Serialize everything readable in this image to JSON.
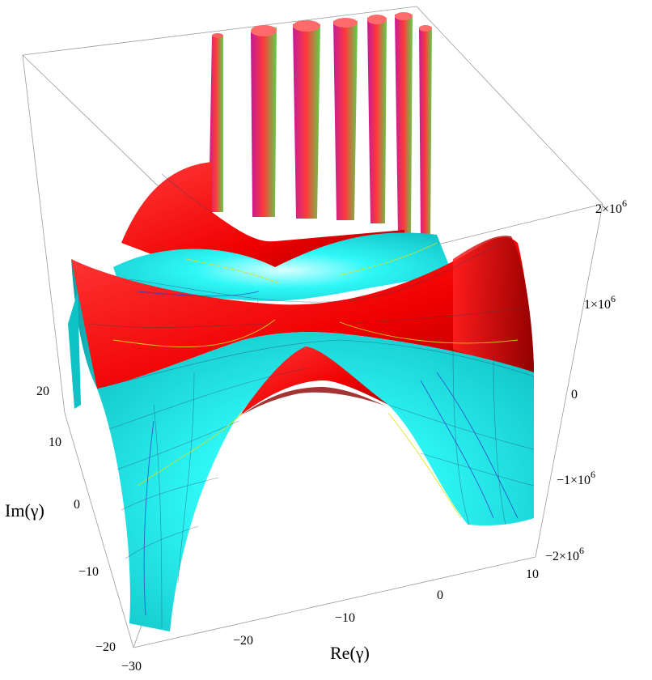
{
  "chart_data": {
    "type": "surface3d",
    "xlabel": "Re(γ)",
    "ylabel": "Im(γ)",
    "zlabel": "",
    "x_ticks": [
      {
        "value": -30,
        "label": "−30"
      },
      {
        "value": -20,
        "label": "−20"
      },
      {
        "value": -10,
        "label": "−10"
      },
      {
        "value": 0,
        "label": "0"
      },
      {
        "value": 10,
        "label": "10"
      }
    ],
    "y_ticks": [
      {
        "value": 20,
        "label": "20"
      },
      {
        "value": 10,
        "label": "10"
      },
      {
        "value": 0,
        "label": "0"
      },
      {
        "value": -10,
        "label": "−10"
      },
      {
        "value": -20,
        "label": "−20"
      }
    ],
    "z_ticks": [
      {
        "value": 2000000,
        "label": "2×10",
        "exp": "6"
      },
      {
        "value": 1000000,
        "label": "1×10",
        "exp": "6"
      },
      {
        "value": 0,
        "label": "0",
        "exp": ""
      },
      {
        "value": -1000000,
        "label": "−1×10",
        "exp": "6"
      },
      {
        "value": -2000000,
        "label": "−2×10",
        "exp": "6"
      }
    ],
    "xlim": [
      -30,
      10
    ],
    "ylim": [
      -20,
      20
    ],
    "zlim": [
      -2000000,
      2000000
    ],
    "colors": {
      "positive": "#ff1a1a",
      "positive_dark": "#b30000",
      "negative": "#14f0f0",
      "negative_dark": "#0aa6a6",
      "contour_yellow": "#d8e01a",
      "contour_blue": "#2a3cc8"
    },
    "grid": true
  }
}
